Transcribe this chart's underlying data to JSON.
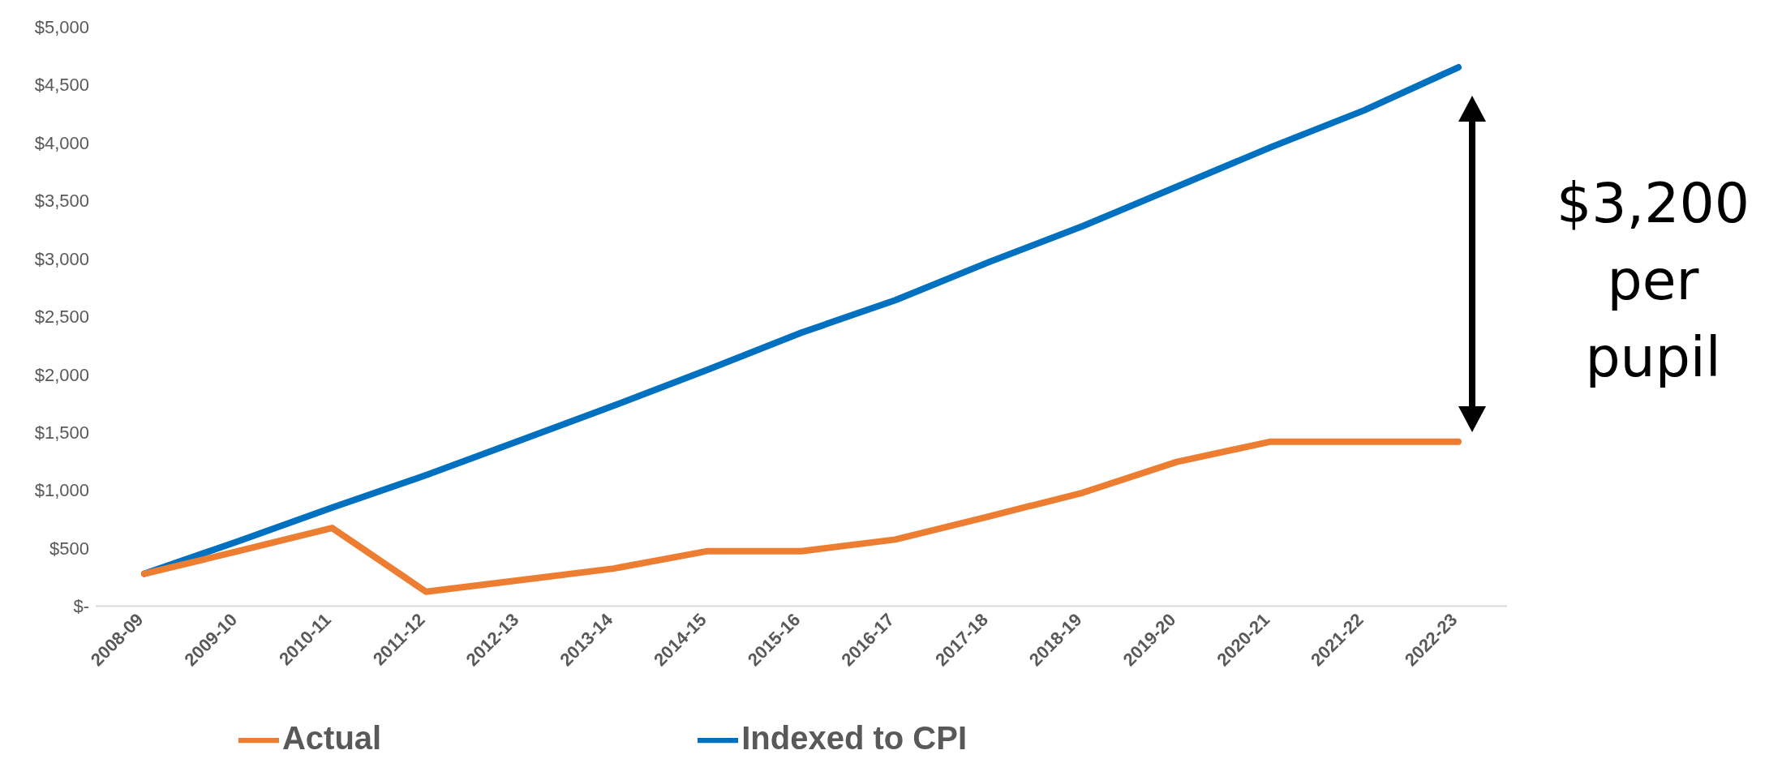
{
  "chart_data": {
    "type": "line",
    "categories": [
      "2008-09",
      "2009-10",
      "2010-11",
      "2011-12",
      "2012-13",
      "2013-14",
      "2014-15",
      "2015-16",
      "2016-17",
      "2017-18",
      "2018-19",
      "2019-20",
      "2020-21",
      "2021-22",
      "2022-23"
    ],
    "series": [
      {
        "name": "Indexed to CPI",
        "color": "#0070c0",
        "values": [
          280,
          560,
          850,
          1130,
          1430,
          1730,
          2040,
          2360,
          2640,
          2970,
          3280,
          3620,
          3960,
          4280,
          4650
        ]
      },
      {
        "name": "Actual",
        "color": "#ed7d31",
        "values": [
          280,
          475,
          675,
          125,
          225,
          325,
          475,
          475,
          575,
          775,
          980,
          1245,
          1420,
          1420,
          1420
        ]
      }
    ],
    "ylim": [
      0,
      5000
    ],
    "yticks": [
      {
        "value": 0,
        "label": "$-"
      },
      {
        "value": 500,
        "label": "$500"
      },
      {
        "value": 1000,
        "label": "$1,000"
      },
      {
        "value": 1500,
        "label": "$1,500"
      },
      {
        "value": 2000,
        "label": "$2,000"
      },
      {
        "value": 2500,
        "label": "$2,500"
      },
      {
        "value": 3000,
        "label": "$3,000"
      },
      {
        "value": 3500,
        "label": "$3,500"
      },
      {
        "value": 4000,
        "label": "$4,000"
      },
      {
        "value": 4500,
        "label": "$4,500"
      },
      {
        "value": 5000,
        "label": "$5,000"
      }
    ],
    "grid": false,
    "legend": "bottom",
    "annotations": [
      "$3,200 per pupil"
    ]
  }
}
